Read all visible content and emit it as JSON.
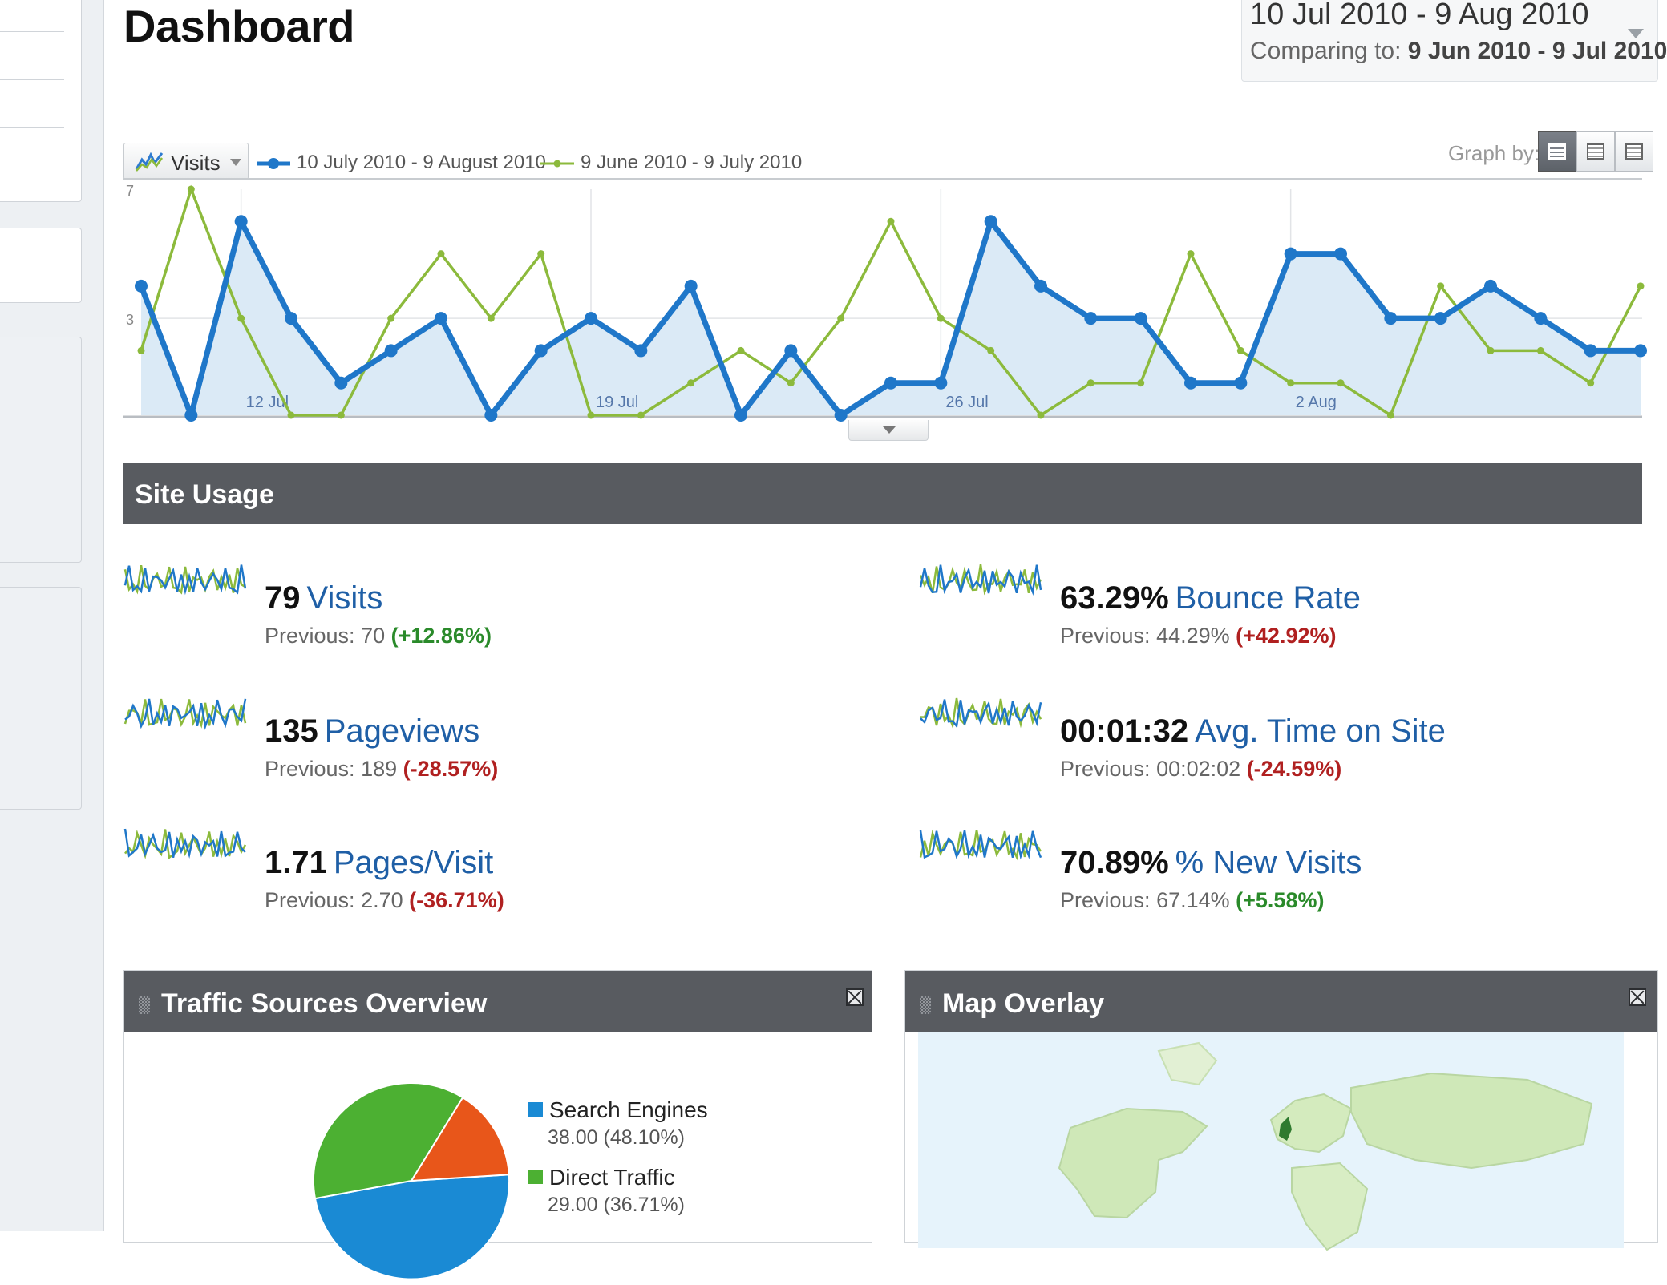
{
  "page": {
    "title": "Dashboard"
  },
  "date_selector": {
    "range": "10 Jul 2010 - 9 Aug 2010",
    "compare_label": "Comparing to:",
    "compare_range": "9 Jun 2010 - 9 Jul 2010"
  },
  "graph_toolbar": {
    "metric": "Visits",
    "legend_current": "10 July 2010 - 9 August 2010",
    "legend_previous": "9 June 2010 - 9 July 2010",
    "graph_by_label": "Graph by:",
    "views": [
      "day",
      "week",
      "month"
    ],
    "active_view": "day"
  },
  "colors": {
    "current_series": "#1f77c9",
    "previous_series": "#8cba3c",
    "area_fill": "#dbeaf6",
    "positive_delta": "#2a8a2a",
    "negative_delta": "#b02020",
    "header_bar": "#585b60",
    "link_blue": "#1f5fa6"
  },
  "chart_data": {
    "type": "line",
    "y_ticks": [
      "7",
      "3"
    ],
    "ylim": [
      0,
      7
    ],
    "x_labels": [
      "12 Jul",
      "19 Jul",
      "26 Jul",
      "2 Aug"
    ],
    "series": [
      {
        "name": "10 July 2010 - 9 August 2010",
        "values": [
          4,
          0,
          6,
          3,
          1,
          2,
          3,
          0,
          2,
          3,
          2,
          4,
          0,
          2,
          0,
          1,
          1,
          6,
          4,
          3,
          3,
          1,
          1,
          5,
          5,
          3,
          3,
          4,
          3,
          2,
          2
        ]
      },
      {
        "name": "9 June 2010 - 9 July 2010",
        "values": [
          2,
          7,
          3,
          0,
          0,
          3,
          5,
          3,
          5,
          0,
          0,
          1,
          2,
          1,
          3,
          6,
          3,
          2,
          0,
          1,
          1,
          5,
          2,
          1,
          1,
          0,
          4,
          2,
          2,
          1,
          4
        ]
      }
    ]
  },
  "site_usage": {
    "title": "Site Usage",
    "previous_prefix": "Previous: ",
    "stats": [
      {
        "value": "79",
        "label": "Visits",
        "previous": "70",
        "delta": "(+12.86%)",
        "trend": "positive"
      },
      {
        "value": "135",
        "label": "Pageviews",
        "previous": "189",
        "delta": "(-28.57%)",
        "trend": "negative"
      },
      {
        "value": "1.71",
        "label": "Pages/Visit",
        "previous": "2.70",
        "delta": "(-36.71%)",
        "trend": "negative"
      },
      {
        "value": "63.29%",
        "label": "Bounce Rate",
        "previous": "44.29%",
        "delta": "(+42.92%)",
        "trend": "negative"
      },
      {
        "value": "00:01:32",
        "label": "Avg. Time on Site",
        "previous": "00:02:02",
        "delta": "(-24.59%)",
        "trend": "negative"
      },
      {
        "value": "70.89%",
        "label": "% New Visits",
        "previous": "67.14%",
        "delta": "(+5.58%)",
        "trend": "positive"
      }
    ]
  },
  "traffic_sources": {
    "title": "Traffic Sources Overview",
    "slices": [
      {
        "name": "Search Engines",
        "value": "38.00 (48.10%)",
        "pct": 48.1,
        "color": "#1a8ad4"
      },
      {
        "name": "Direct Traffic",
        "value": "29.00 (36.71%)",
        "pct": 36.71,
        "color": "#4cb032"
      },
      {
        "name": "",
        "value": "",
        "pct": 15.19,
        "color": "#e8561a"
      }
    ]
  },
  "map_overlay": {
    "title": "Map Overlay"
  }
}
